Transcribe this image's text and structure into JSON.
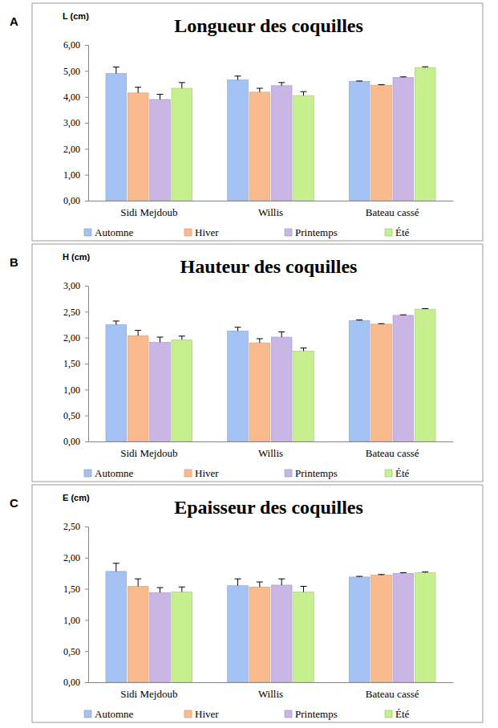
{
  "chart_data": [
    {
      "type": "bar",
      "panel_label": "A",
      "title": "Longueur des coquilles",
      "ylabel": "L (cm)",
      "categories": [
        "Sidi Mejdoub",
        "Willis",
        "Bateau cassé"
      ],
      "series": [
        {
          "name": "Automne",
          "color": "#a4c2f4",
          "values": [
            4.9,
            4.65,
            4.6
          ],
          "errors": [
            0.25,
            0.15,
            0.01
          ]
        },
        {
          "name": "Hiver",
          "color": "#f9bb8d",
          "values": [
            4.15,
            4.18,
            4.45
          ],
          "errors": [
            0.22,
            0.15,
            0.02
          ]
        },
        {
          "name": "Printemps",
          "color": "#c9b6e4",
          "values": [
            3.9,
            4.43,
            4.75
          ],
          "errors": [
            0.2,
            0.12,
            0.02
          ]
        },
        {
          "name": "Été",
          "color": "#c6ef8e",
          "values": [
            4.33,
            4.05,
            5.13
          ],
          "errors": [
            0.22,
            0.15,
            0.03
          ]
        }
      ],
      "ylim": [
        0,
        6
      ],
      "yticks": [
        {
          "value": 0,
          "label": "0,00"
        },
        {
          "value": 1,
          "label": "1,00"
        },
        {
          "value": 2,
          "label": "2,00"
        },
        {
          "value": 3,
          "label": "3,00"
        },
        {
          "value": 4,
          "label": "4,00"
        },
        {
          "value": 5,
          "label": "5,00"
        },
        {
          "value": 6,
          "label": "6,00"
        }
      ],
      "grid": false,
      "legend": "bottom"
    },
    {
      "type": "bar",
      "panel_label": "B",
      "title": "Hauteur des coquilles",
      "ylabel": "H (cm)",
      "categories": [
        "Sidi Mejdoub",
        "Willis",
        "Bateau cassé"
      ],
      "series": [
        {
          "name": "Automne",
          "color": "#a4c2f4",
          "values": [
            2.25,
            2.13,
            2.33
          ],
          "errors": [
            0.07,
            0.07,
            0.01
          ]
        },
        {
          "name": "Hiver",
          "color": "#f9bb8d",
          "values": [
            2.04,
            1.9,
            2.26
          ],
          "errors": [
            0.1,
            0.08,
            0.01
          ]
        },
        {
          "name": "Printemps",
          "color": "#c9b6e4",
          "values": [
            1.91,
            2.01,
            2.43
          ],
          "errors": [
            0.1,
            0.1,
            0.01
          ]
        },
        {
          "name": "Été",
          "color": "#c6ef8e",
          "values": [
            1.96,
            1.74,
            2.55
          ],
          "errors": [
            0.07,
            0.06,
            0.01
          ]
        }
      ],
      "ylim": [
        0,
        3
      ],
      "yticks": [
        {
          "value": 0,
          "label": "0,00"
        },
        {
          "value": 0.5,
          "label": "0,50"
        },
        {
          "value": 1,
          "label": "1,00"
        },
        {
          "value": 1.5,
          "label": "1,50"
        },
        {
          "value": 2,
          "label": "2,00"
        },
        {
          "value": 2.5,
          "label": "2,50"
        },
        {
          "value": 3,
          "label": "3,00"
        }
      ],
      "grid": false,
      "legend": "bottom"
    },
    {
      "type": "bar",
      "panel_label": "C",
      "title": "Epaisseur des coquilles",
      "ylabel": "E (cm)",
      "categories": [
        "Sidi Mejdoub",
        "Willis",
        "Bateau cassé"
      ],
      "series": [
        {
          "name": "Automne",
          "color": "#a4c2f4",
          "values": [
            1.78,
            1.55,
            1.69
          ],
          "errors": [
            0.13,
            0.11,
            0.01
          ]
        },
        {
          "name": "Hiver",
          "color": "#f9bb8d",
          "values": [
            1.54,
            1.53,
            1.72
          ],
          "errors": [
            0.12,
            0.08,
            0.01
          ]
        },
        {
          "name": "Printemps",
          "color": "#c9b6e4",
          "values": [
            1.44,
            1.56,
            1.75
          ],
          "errors": [
            0.08,
            0.1,
            0.01
          ]
        },
        {
          "name": "Été",
          "color": "#c6ef8e",
          "values": [
            1.45,
            1.45,
            1.76
          ],
          "errors": [
            0.08,
            0.09,
            0.01
          ]
        }
      ],
      "ylim": [
        0,
        2.5
      ],
      "yticks": [
        {
          "value": 0,
          "label": "0,00"
        },
        {
          "value": 0.5,
          "label": "0,50"
        },
        {
          "value": 1,
          "label": "1,00"
        },
        {
          "value": 1.5,
          "label": "1,50"
        },
        {
          "value": 2,
          "label": "2,00"
        },
        {
          "value": 2.5,
          "label": "2,50"
        }
      ],
      "grid": false,
      "legend": "bottom"
    }
  ]
}
